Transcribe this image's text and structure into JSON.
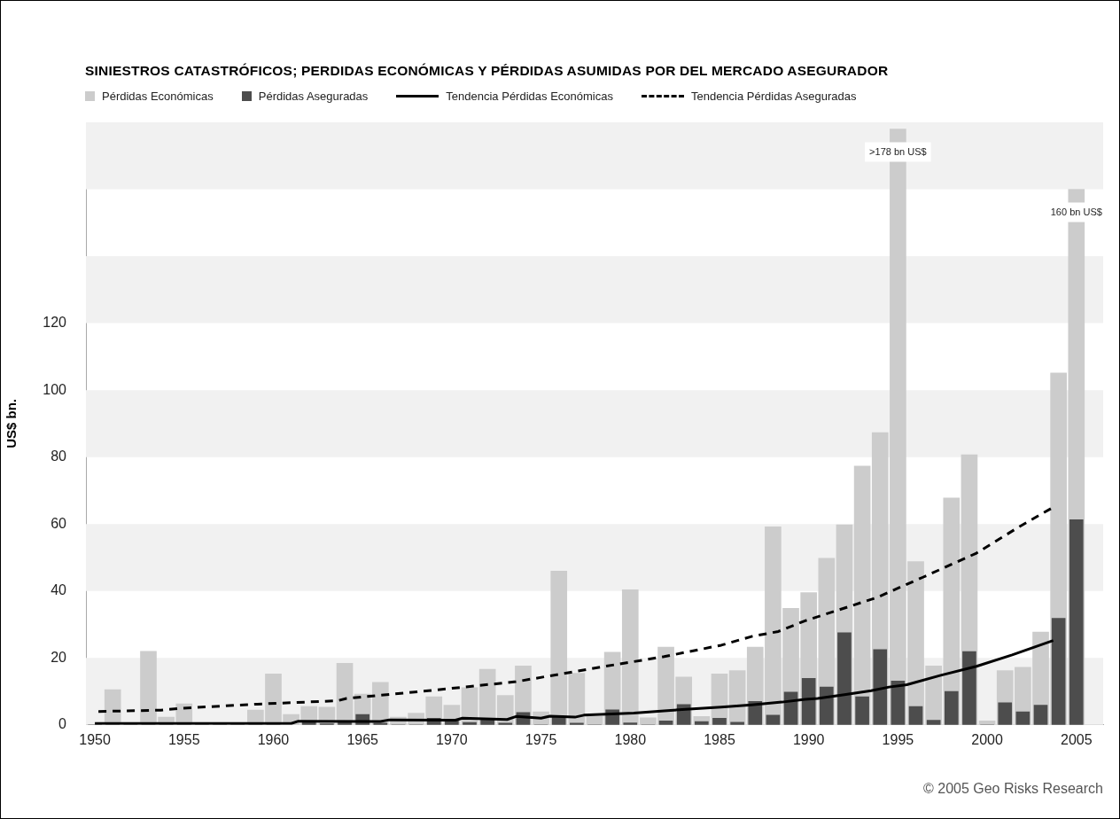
{
  "chart_data": {
    "type": "bar",
    "title": "SINIESTROS CATASTRÓFICOS; PERDIDAS ECONÓMICAS Y PÉRDIDAS ASUMIDAS POR DEL MERCADO ASEGURADOR",
    "ylabel": "US$ bn.",
    "x": [
      1950,
      1951,
      1952,
      1953,
      1954,
      1955,
      1956,
      1957,
      1958,
      1959,
      1960,
      1961,
      1962,
      1963,
      1964,
      1965,
      1966,
      1967,
      1968,
      1969,
      1970,
      1971,
      1972,
      1973,
      1974,
      1975,
      1976,
      1977,
      1978,
      1979,
      1980,
      1981,
      1982,
      1983,
      1984,
      1985,
      1986,
      1987,
      1988,
      1989,
      1990,
      1991,
      1992,
      1993,
      1994,
      1995,
      1996,
      1997,
      1998,
      1999,
      2000,
      2001,
      2002,
      2003,
      2004,
      2005
    ],
    "series": [
      {
        "name": "Pérdidas Económicas",
        "color": "#cccccc",
        "values": [
          0,
          10.5,
          0,
          22,
          2.3,
          6.3,
          0,
          0,
          0,
          4.4,
          15.2,
          3.1,
          5.5,
          5.3,
          18.4,
          9.2,
          12.7,
          2.3,
          3.5,
          8.4,
          5.9,
          11.1,
          16.6,
          8.8,
          17.6,
          3.9,
          45.9,
          15.4,
          2.5,
          21.7,
          40.4,
          2.1,
          23.2,
          14.3,
          2.5,
          15.2,
          16.2,
          23.2,
          59.2,
          34.8,
          39.5,
          49.8,
          59.8,
          77.3,
          87.3,
          178,
          48.8,
          17.6,
          67.8,
          80.7,
          1.2,
          16.2,
          17.2,
          27.7,
          105.1,
          160
        ]
      },
      {
        "name": "Pérdidas Aseguradas",
        "color": "#4d4d4d",
        "values": [
          0,
          0,
          0,
          0,
          0,
          0,
          0,
          0,
          0,
          0,
          0,
          null,
          1.0,
          0.3,
          1.0,
          3.1,
          0.5,
          0,
          0,
          2.0,
          1.4,
          0.7,
          1.5,
          0.5,
          3.7,
          0,
          2.3,
          0.5,
          0,
          4.5,
          0.6,
          0,
          1.2,
          6.1,
          1.0,
          2.0,
          0.8,
          7.0,
          2.9,
          9.8,
          13.9,
          11.3,
          27.5,
          8.4,
          22.5,
          13.1,
          5.5,
          1.4,
          10.0,
          21.9,
          0,
          6.6,
          3.9,
          5.9,
          31.8,
          61.3
        ]
      },
      {
        "name": "Tendencia Pérdidas Económicas",
        "type": "line",
        "color": "#000000",
        "line_style": "solid",
        "x": [
          1950,
          1961,
          1961.4,
          1966,
          1966.5,
          1970.2,
          1970.6,
          1973.1,
          1973.6,
          1975,
          1975.5,
          1976.9,
          1977.4,
          1980.2,
          1981.9,
          1983.5,
          1985.1,
          1986.8,
          1988.5,
          1989.8,
          1990.5,
          1992,
          1992.5,
          1993.5,
          1994.5,
          1995.5,
          1997.4,
          1999.4,
          2001.4,
          2003.7
        ],
        "values": [
          0.4,
          0.4,
          1.1,
          1.0,
          1.5,
          1.4,
          2.0,
          1.6,
          2.5,
          2.0,
          2.6,
          2.3,
          2.9,
          3.5,
          4.2,
          4.8,
          5.3,
          6.0,
          6.8,
          7.6,
          7.9,
          9.0,
          9.4,
          10.2,
          11.3,
          12.0,
          14.8,
          17.5,
          20.9,
          25.2
        ]
      },
      {
        "name": "Tendencia Pérdidas Aseguradas",
        "type": "line",
        "color": "#000000",
        "line_style": "dashed",
        "x": [
          1950.2,
          1953.7,
          1954.7,
          1959.1,
          1963.6,
          1964.1,
          1968.7,
          1973.6,
          1978.5,
          1981.9,
          1985.1,
          1986.8,
          1988.3,
          1989.8,
          1993.8,
          1996.4,
          1999.4,
          2001.8,
          2003.7
        ],
        "values": [
          4.0,
          4.4,
          4.9,
          6.2,
          7.2,
          7.9,
          10.2,
          12.9,
          17.4,
          20.4,
          23.8,
          26.4,
          27.9,
          31.1,
          38.0,
          44.1,
          51.3,
          59.2,
          65.0
        ]
      }
    ],
    "xlim": [
      1949.5,
      2006.5
    ],
    "xticks": [
      1950,
      1955,
      1960,
      1965,
      1970,
      1975,
      1980,
      1985,
      1990,
      1995,
      2000,
      2005
    ],
    "ylim": [
      0,
      180
    ],
    "yticks": [
      0,
      20,
      40,
      60,
      80,
      100,
      120
    ],
    "bands": [
      {
        "axis": "y",
        "from": 0,
        "to": 20,
        "color": "#f1f1f1"
      },
      {
        "axis": "y",
        "from": 40,
        "to": 60,
        "color": "#f1f1f1"
      },
      {
        "axis": "y",
        "from": 80,
        "to": 100,
        "color": "#f1f1f1"
      },
      {
        "axis": "y",
        "from": 120,
        "to": 140,
        "color": "#f1f1f1"
      },
      {
        "axis": "y",
        "from": 160,
        "to": 180,
        "color": "#f1f1f1"
      }
    ],
    "legend": "top left",
    "annotations": [
      {
        "text": ">178 bn US$",
        "x": 1995,
        "y": 178
      },
      {
        "text": "160 bn US$",
        "x": 2005,
        "y": 160
      },
      "© 2005 Geo Risks Research"
    ]
  }
}
